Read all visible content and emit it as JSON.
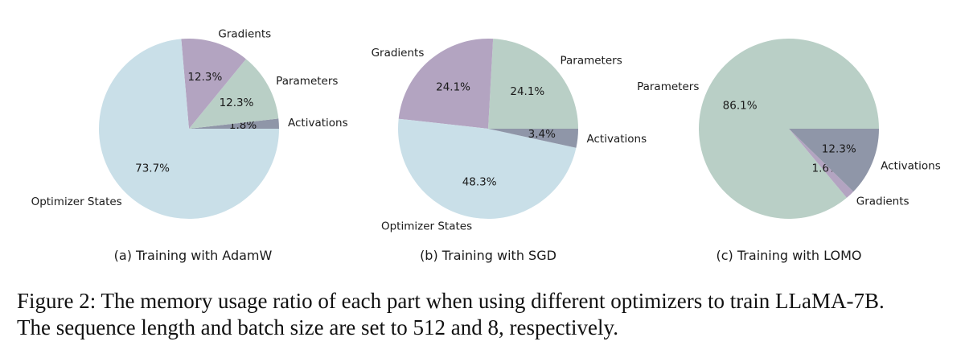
{
  "figure": {
    "caption_line1": "Figure 2: The memory usage ratio of each part when using different optimizers to train LLaMA-7B.",
    "caption_line2": "The sequence length and batch size are set to 512 and 8, respectively."
  },
  "colors": {
    "Parameters": "#b9cfc6",
    "Gradients": "#b3a4c1",
    "Activations": "#8f96a8",
    "Optimizer States": "#c9dfe8"
  },
  "chart_data": [
    {
      "type": "pie",
      "title": "(a) Training with AdamW",
      "start_angle_deg": 0,
      "direction": "counterclockwise",
      "slices": [
        {
          "label": "Activations",
          "value": 1.8,
          "display": "1.8%"
        },
        {
          "label": "Parameters",
          "value": 12.3,
          "display": "12.3%"
        },
        {
          "label": "Gradients",
          "value": 12.3,
          "display": "12.3%"
        },
        {
          "label": "Optimizer States",
          "value": 73.7,
          "display": "73.7%"
        }
      ]
    },
    {
      "type": "pie",
      "title": "(b) Training with SGD",
      "start_angle_deg": 0,
      "direction": "counterclockwise",
      "slices": [
        {
          "label": "Parameters",
          "value": 24.1,
          "display": "24.1%"
        },
        {
          "label": "Gradients",
          "value": 24.1,
          "display": "24.1%"
        },
        {
          "label": "Optimizer States",
          "value": 48.3,
          "display": "48.3%"
        },
        {
          "label": "Activations",
          "value": 3.4,
          "display": "3.4%"
        }
      ]
    },
    {
      "type": "pie",
      "title": "(c) Training with LOMO",
      "start_angle_deg": 0,
      "direction": "counterclockwise",
      "slices": [
        {
          "label": "Parameters",
          "value": 86.1,
          "display": "86.1%"
        },
        {
          "label": "Gradients",
          "value": 1.6,
          "display": "1.6%"
        },
        {
          "label": "Activations",
          "value": 12.3,
          "display": "12.3%"
        }
      ]
    }
  ]
}
